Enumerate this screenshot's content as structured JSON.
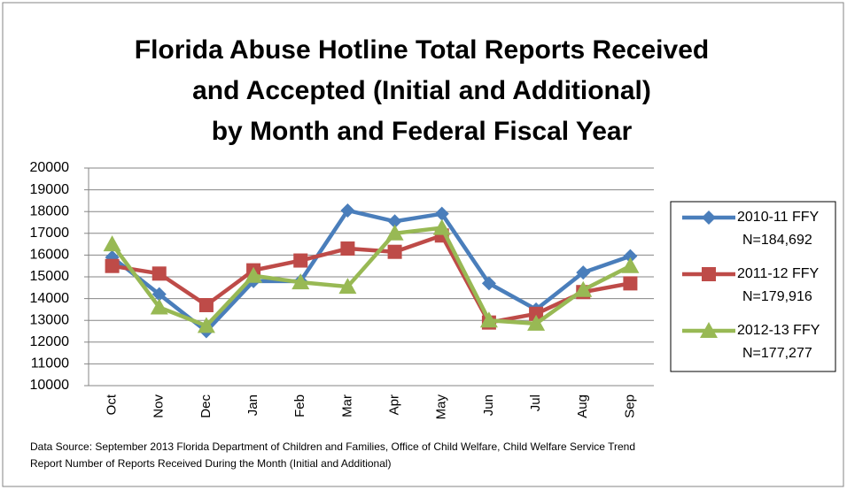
{
  "chart_data": {
    "type": "line",
    "title": [
      "Florida Abuse Hotline Total Reports Received",
      "and Accepted  (Initial and Additional)",
      "by Month and Federal Fiscal Year"
    ],
    "categories": [
      "Oct",
      "Nov",
      "Dec",
      "Jan",
      "Feb",
      "Mar",
      "Apr",
      "May",
      "Jun",
      "Jul",
      "Aug",
      "Sep"
    ],
    "series": [
      {
        "name": "2010-11 FFY",
        "n_label": "N=184,692",
        "color": "#4a7ebb",
        "marker": "diamond",
        "values": [
          15900,
          14200,
          12500,
          14800,
          14800,
          18050,
          17550,
          17900,
          14700,
          13500,
          15200,
          15950
        ]
      },
      {
        "name": "2011-12 FFY",
        "n_label": "N=179,916",
        "color": "#be4b48",
        "marker": "square",
        "values": [
          15500,
          15150,
          13700,
          15300,
          15750,
          16300,
          16150,
          16900,
          12900,
          13300,
          14300,
          14700
        ]
      },
      {
        "name": "2012-13 FFY",
        "n_label": "N=177,277",
        "color": "#98b954",
        "marker": "triangle",
        "values": [
          16500,
          13600,
          12750,
          15050,
          14750,
          14550,
          17000,
          17250,
          13000,
          12850,
          14400,
          15500
        ]
      }
    ],
    "ylim": [
      10000,
      20000
    ],
    "yticks": [
      10000,
      11000,
      12000,
      13000,
      14000,
      15000,
      16000,
      17000,
      18000,
      19000,
      20000
    ],
    "grid": true,
    "legend": "right",
    "source": [
      "Data Source: September 2013 Florida Department of Children and Families, Office of Child Welfare, Child Welfare Service Trend",
      "Report Number of Reports Received During the Month (Initial and Additional)"
    ]
  }
}
